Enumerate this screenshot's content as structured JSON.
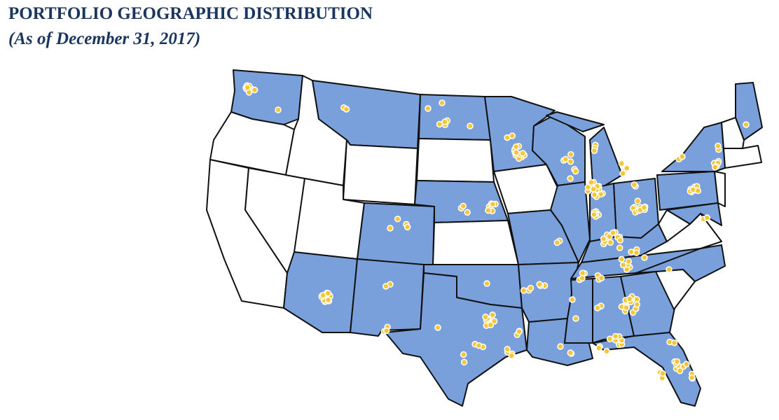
{
  "header": {
    "title": "PORTFOLIO GEOGRAPHIC DISTRIBUTION",
    "subtitle": "(As of December 31, 2017)"
  }
}
